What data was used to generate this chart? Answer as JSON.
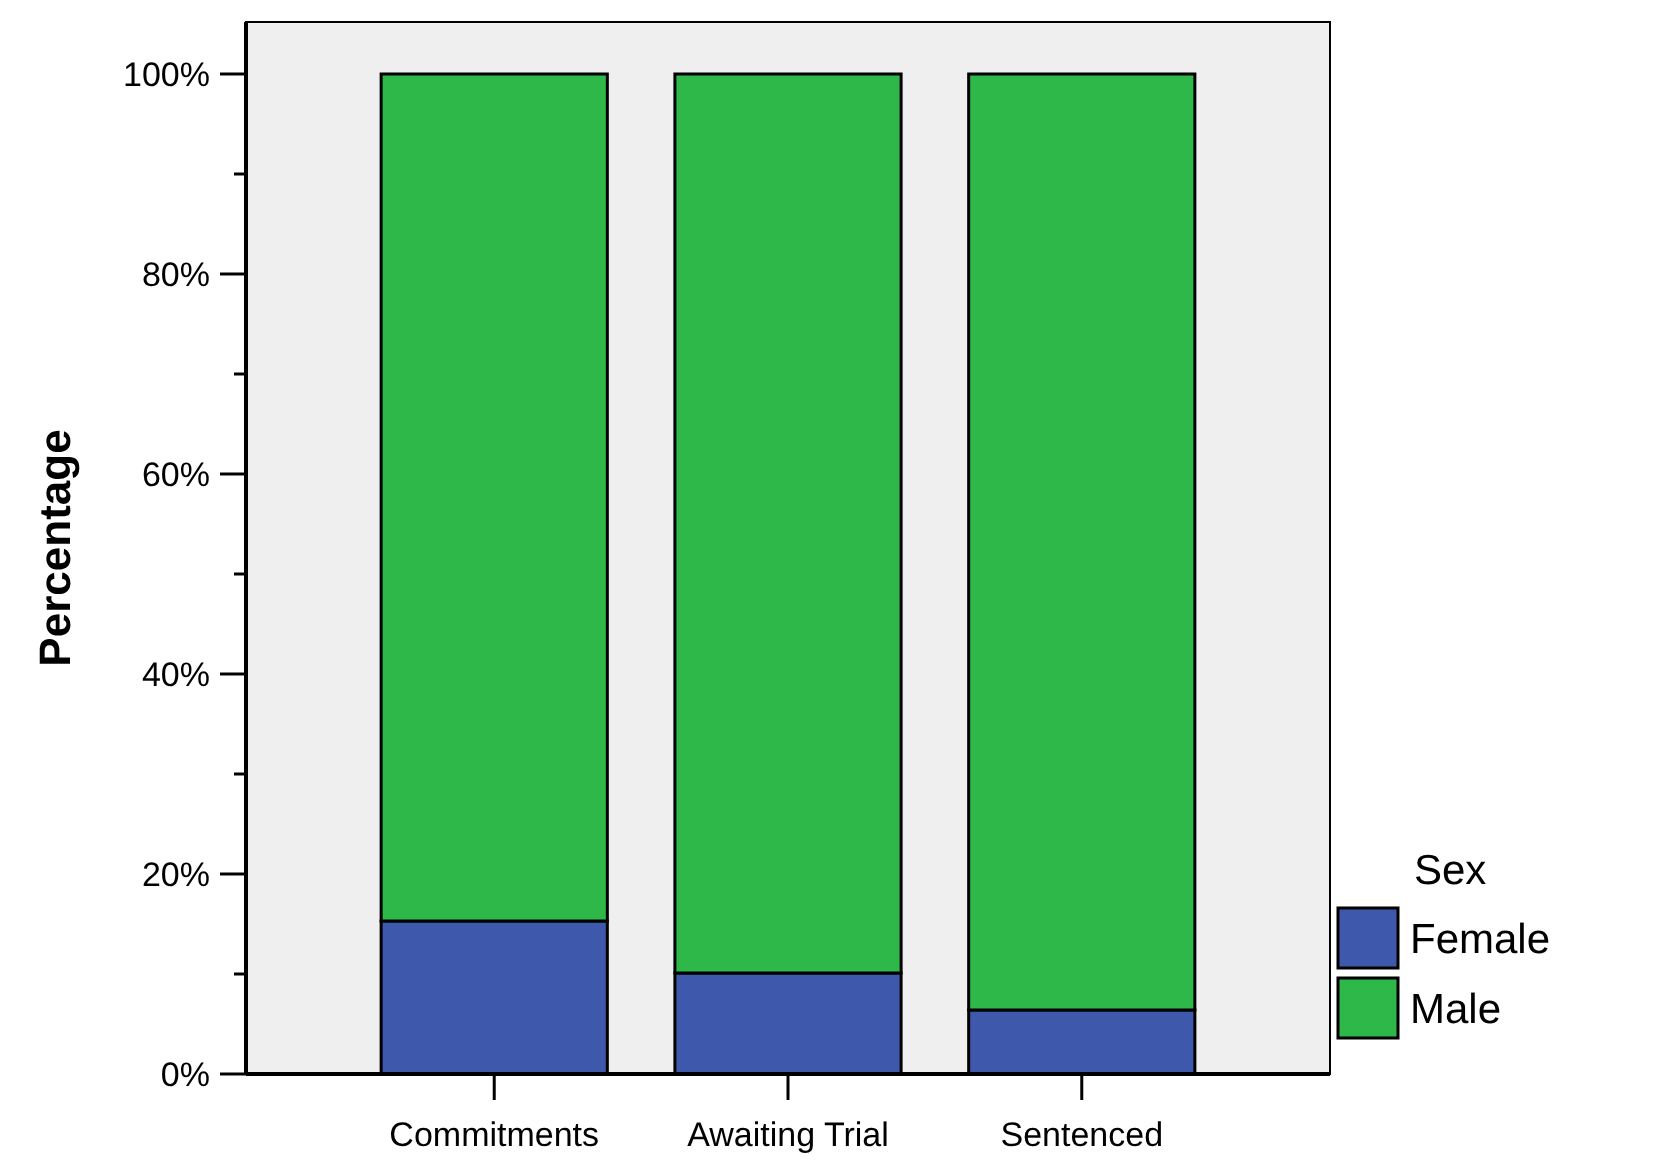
{
  "chart_data": {
    "type": "bar",
    "stacked": true,
    "ylabel": "Percentage",
    "legend_title": "Sex",
    "legend": "bottom right",
    "grid": false,
    "categories": [
      "Commitments",
      "Awaiting Trial",
      "Sentenced"
    ],
    "series": [
      {
        "name": "Female",
        "color": "#3e58ac",
        "values": [
          15.3,
          10.1,
          6.4
        ]
      },
      {
        "name": "Male",
        "color": "#2fb84a",
        "values": [
          84.7,
          89.9,
          93.6
        ]
      }
    ],
    "ylim": [
      0,
      105.2
    ],
    "yticks": [
      {
        "value": 0,
        "label": "0%"
      },
      {
        "value": 10,
        "label": null
      },
      {
        "value": 20,
        "label": "20%"
      },
      {
        "value": 30,
        "label": null
      },
      {
        "value": 40,
        "label": "40%"
      },
      {
        "value": 50,
        "label": null
      },
      {
        "value": 60,
        "label": "60%"
      },
      {
        "value": 70,
        "label": null
      },
      {
        "value": 80,
        "label": "80%"
      },
      {
        "value": 90,
        "label": null
      },
      {
        "value": 100,
        "label": "100%"
      }
    ]
  }
}
